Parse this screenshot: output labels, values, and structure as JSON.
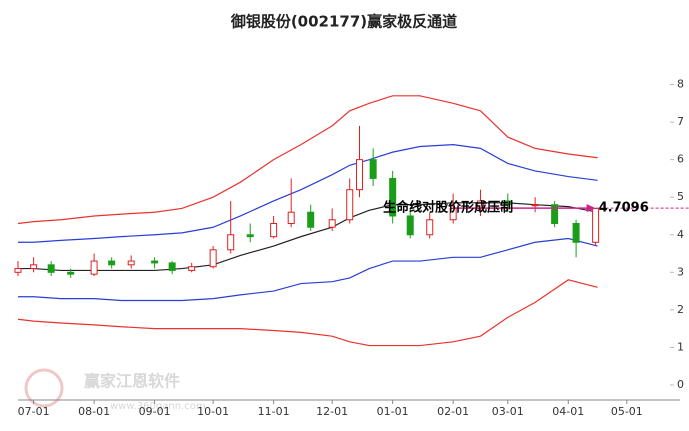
{
  "chart_data": {
    "type": "candlestick",
    "title": "御银股份(002177)赢家极反通道",
    "watermark": "赢家江恩软件",
    "watermark_url": "www.360gann.com",
    "xlim": [
      "06-23",
      "05-18"
    ],
    "xticks": [
      "07-01",
      "08-01",
      "09-01",
      "10-01",
      "11-01",
      "12-01",
      "01-01",
      "02-01",
      "03-01",
      "04-01",
      "05-01"
    ],
    "ylim": [
      -0.4,
      8.6
    ],
    "yticks": [
      0,
      1,
      2,
      3,
      4,
      5,
      6,
      7,
      8
    ],
    "up_color": "#e02020",
    "down_color": "#1a9e1a",
    "candles": {
      "x": [
        "06-23",
        "07-01",
        "07-10",
        "07-20",
        "08-01",
        "08-10",
        "08-20",
        "09-01",
        "09-10",
        "09-20",
        "10-01",
        "10-10",
        "10-20",
        "11-01",
        "11-10",
        "11-20",
        "12-01",
        "12-10",
        "12-15",
        "12-22",
        "01-01",
        "01-10",
        "01-20",
        "02-01",
        "02-15",
        "03-01",
        "03-15",
        "03-25",
        "04-05",
        "04-15"
      ],
      "open": [
        3.0,
        3.1,
        3.2,
        3.0,
        2.95,
        3.3,
        3.2,
        3.3,
        3.25,
        3.05,
        3.15,
        3.6,
        4.0,
        3.95,
        4.3,
        4.6,
        4.2,
        4.4,
        5.2,
        6.0,
        5.5,
        4.5,
        4.0,
        4.4,
        4.7,
        4.9,
        4.8,
        4.8,
        4.3,
        3.8
      ],
      "close": [
        3.1,
        3.2,
        3.0,
        2.95,
        3.3,
        3.2,
        3.3,
        3.25,
        3.05,
        3.15,
        3.6,
        4.0,
        3.95,
        4.3,
        4.6,
        4.2,
        4.4,
        5.2,
        6.0,
        5.5,
        4.5,
        4.0,
        4.4,
        4.7,
        4.9,
        4.8,
        4.8,
        4.3,
        3.8,
        4.7
      ],
      "high": [
        3.3,
        3.4,
        3.3,
        3.1,
        3.5,
        3.4,
        3.45,
        3.4,
        3.3,
        3.25,
        3.7,
        4.9,
        4.3,
        4.5,
        5.5,
        4.8,
        4.7,
        5.5,
        6.9,
        6.3,
        5.7,
        4.7,
        4.6,
        5.1,
        5.2,
        5.1,
        5.0,
        4.9,
        4.4,
        4.7
      ],
      "low": [
        2.9,
        3.0,
        2.9,
        2.85,
        2.9,
        3.1,
        3.1,
        3.1,
        2.95,
        3.0,
        3.1,
        3.5,
        3.8,
        3.9,
        4.2,
        4.1,
        4.1,
        4.3,
        5.0,
        5.3,
        4.3,
        3.9,
        3.9,
        4.3,
        4.5,
        4.6,
        4.6,
        4.2,
        3.4,
        3.7
      ]
    },
    "x": [
      "06-23",
      "07-01",
      "07-15",
      "08-01",
      "08-15",
      "09-01",
      "09-15",
      "10-01",
      "10-15",
      "11-01",
      "11-15",
      "12-01",
      "12-10",
      "12-20",
      "01-01",
      "01-15",
      "02-01",
      "02-15",
      "03-01",
      "03-15",
      "04-01",
      "04-16"
    ],
    "series": [
      {
        "color": "#e8332f",
        "values": [
          4.3,
          4.35,
          4.4,
          4.5,
          4.55,
          4.6,
          4.7,
          5.0,
          5.4,
          6.0,
          6.4,
          6.9,
          7.3,
          7.5,
          7.7,
          7.7,
          7.5,
          7.3,
          6.6,
          6.3,
          6.15,
          6.05
        ]
      },
      {
        "color": "#2a3ed6",
        "values": [
          3.8,
          3.8,
          3.85,
          3.9,
          3.95,
          4.0,
          4.05,
          4.2,
          4.5,
          4.9,
          5.2,
          5.6,
          5.85,
          6.0,
          6.2,
          6.35,
          6.4,
          6.3,
          5.9,
          5.7,
          5.55,
          5.45
        ]
      },
      {
        "color": "#222222",
        "values": [
          3.1,
          3.1,
          3.05,
          3.05,
          3.05,
          3.05,
          3.1,
          3.2,
          3.45,
          3.7,
          3.95,
          4.2,
          4.45,
          4.65,
          4.8,
          4.8,
          4.85,
          4.85,
          4.85,
          4.8,
          4.75,
          4.6
        ]
      },
      {
        "color": "#2a3ed6",
        "values": [
          2.35,
          2.35,
          2.3,
          2.3,
          2.25,
          2.25,
          2.25,
          2.3,
          2.4,
          2.5,
          2.7,
          2.75,
          2.85,
          3.1,
          3.3,
          3.3,
          3.4,
          3.4,
          3.6,
          3.8,
          3.9,
          3.7
        ]
      },
      {
        "color": "#e8332f",
        "values": [
          1.75,
          1.7,
          1.65,
          1.6,
          1.55,
          1.5,
          1.5,
          1.5,
          1.5,
          1.45,
          1.4,
          1.3,
          1.15,
          1.05,
          1.05,
          1.05,
          1.15,
          1.3,
          1.8,
          2.2,
          2.8,
          2.6
        ]
      }
    ],
    "annotation": {
      "text": "生命线对股价形成压制",
      "from": "02-01",
      "to": "04-15",
      "value": 4.7096,
      "label": "4.7096",
      "color": "#d0208a"
    }
  }
}
